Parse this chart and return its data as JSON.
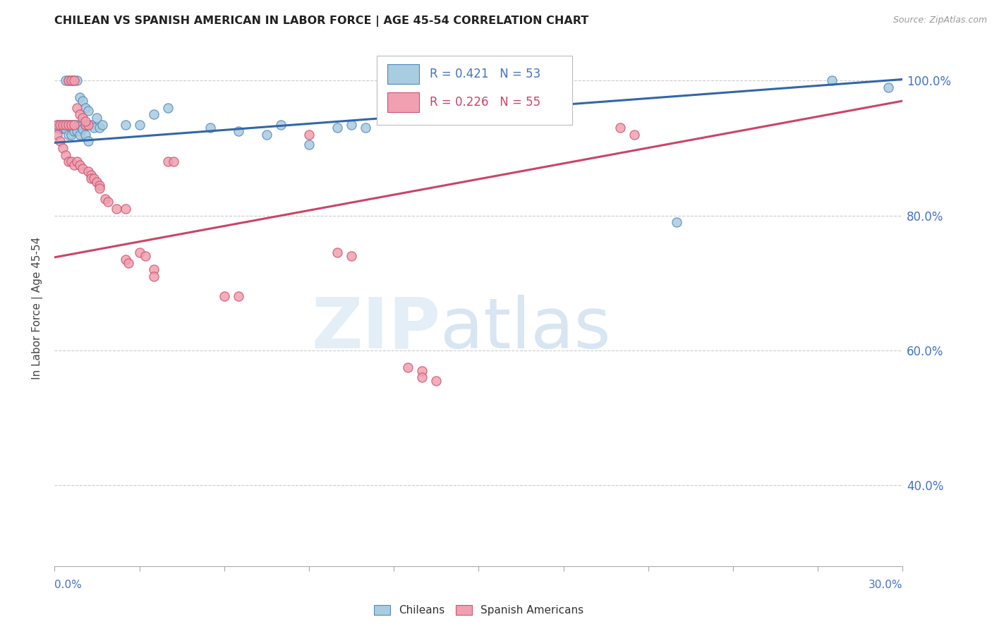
{
  "title": "CHILEAN VS SPANISH AMERICAN IN LABOR FORCE | AGE 45-54 CORRELATION CHART",
  "source": "Source: ZipAtlas.com",
  "ylabel": "In Labor Force | Age 45-54",
  "xmin": 0.0,
  "xmax": 0.3,
  "ymin": 0.28,
  "ymax": 1.045,
  "ytick_vals": [
    1.0,
    0.8,
    0.6,
    0.4
  ],
  "ytick_labels": [
    "100.0%",
    "80.0%",
    "60.0%",
    "40.0%"
  ],
  "blue_line": [
    0.0,
    0.3,
    0.908,
    1.002
  ],
  "pink_line": [
    0.0,
    0.3,
    0.738,
    0.97
  ],
  "blue_color": "#a8cce0",
  "blue_edge": "#5588bb",
  "pink_color": "#f0a0b0",
  "pink_edge": "#cc5570",
  "blue_scatter_x": [
    0.001,
    0.001,
    0.002,
    0.002,
    0.003,
    0.003,
    0.004,
    0.004,
    0.005,
    0.005,
    0.006,
    0.006,
    0.006,
    0.007,
    0.007,
    0.008,
    0.008,
    0.009,
    0.009,
    0.01,
    0.01,
    0.011,
    0.011,
    0.012,
    0.012,
    0.013,
    0.014,
    0.015,
    0.016,
    0.017,
    0.004,
    0.005,
    0.006,
    0.007,
    0.008,
    0.009,
    0.01,
    0.011,
    0.012,
    0.025,
    0.03,
    0.035,
    0.04,
    0.055,
    0.065,
    0.075,
    0.08,
    0.09,
    0.1,
    0.105,
    0.11,
    0.22,
    0.275,
    0.295
  ],
  "blue_scatter_y": [
    0.935,
    0.93,
    0.935,
    0.928,
    0.935,
    0.93,
    0.935,
    0.928,
    0.935,
    0.92,
    0.935,
    0.93,
    0.92,
    0.935,
    0.925,
    0.935,
    0.925,
    0.935,
    0.92,
    0.935,
    0.928,
    0.935,
    0.92,
    0.935,
    0.91,
    0.935,
    0.93,
    0.945,
    0.93,
    0.935,
    1.0,
    1.0,
    1.0,
    1.0,
    1.0,
    0.975,
    0.97,
    0.96,
    0.955,
    0.935,
    0.935,
    0.95,
    0.96,
    0.93,
    0.925,
    0.92,
    0.935,
    0.905,
    0.93,
    0.935,
    0.93,
    0.79,
    1.0,
    0.99
  ],
  "pink_scatter_x": [
    0.001,
    0.001,
    0.002,
    0.002,
    0.003,
    0.003,
    0.004,
    0.004,
    0.005,
    0.005,
    0.006,
    0.006,
    0.007,
    0.007,
    0.008,
    0.009,
    0.01,
    0.011,
    0.012,
    0.005,
    0.006,
    0.007,
    0.008,
    0.009,
    0.01,
    0.011,
    0.012,
    0.013,
    0.013,
    0.014,
    0.015,
    0.016,
    0.016,
    0.018,
    0.019,
    0.022,
    0.025,
    0.025,
    0.026,
    0.03,
    0.032,
    0.035,
    0.035,
    0.04,
    0.042,
    0.06,
    0.065,
    0.09,
    0.1,
    0.105,
    0.125,
    0.13,
    0.13,
    0.135,
    0.2,
    0.205
  ],
  "pink_scatter_y": [
    0.935,
    0.92,
    0.935,
    0.91,
    0.935,
    0.9,
    0.935,
    0.89,
    0.935,
    0.88,
    0.935,
    0.88,
    0.935,
    0.875,
    0.88,
    0.875,
    0.87,
    0.935,
    0.935,
    1.0,
    1.0,
    1.0,
    0.96,
    0.95,
    0.945,
    0.94,
    0.865,
    0.86,
    0.855,
    0.855,
    0.85,
    0.845,
    0.84,
    0.825,
    0.82,
    0.81,
    0.81,
    0.735,
    0.73,
    0.745,
    0.74,
    0.72,
    0.71,
    0.88,
    0.88,
    0.68,
    0.68,
    0.92,
    0.745,
    0.74,
    0.575,
    0.57,
    0.56,
    0.555,
    0.93,
    0.92
  ]
}
